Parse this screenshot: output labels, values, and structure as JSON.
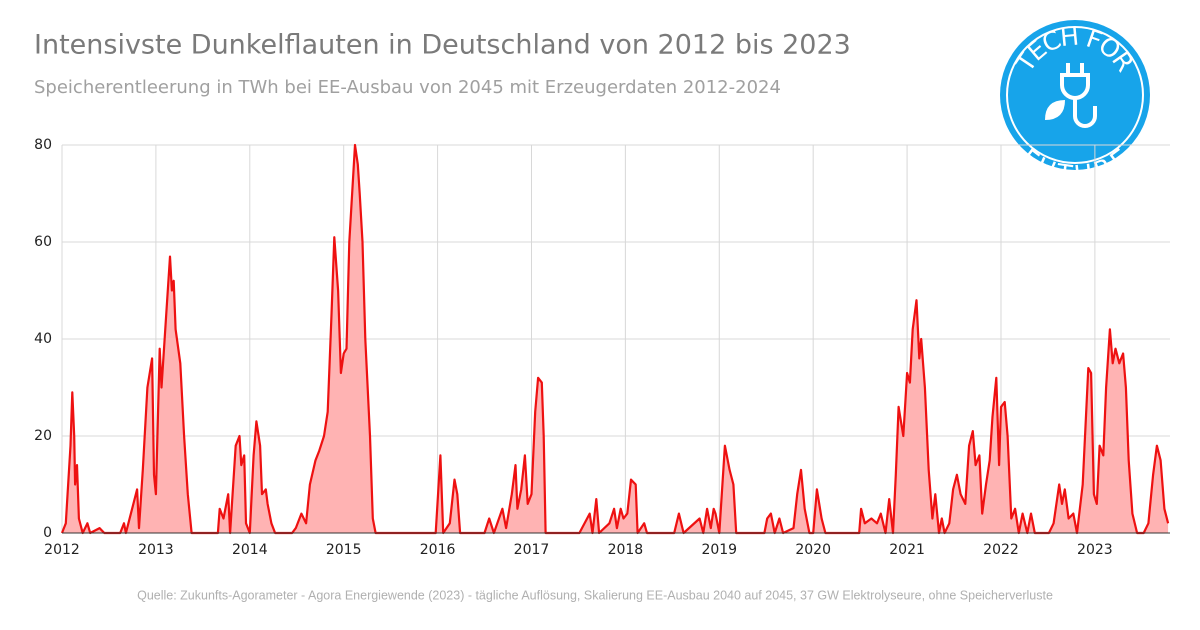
{
  "chart_data": {
    "type": "area",
    "title": "Intensivste Dunkelflauten in Deutschland von 2012 bis 2023",
    "subtitle": "Speicherentleerung in TWh bei EE-Ausbau von 2045 mit Erzeugerdaten 2012-2024",
    "source": "Quelle: Zukunfts-Agorameter - Agora Energiewende (2023) - tägliche  Auflösung, Skalierung EE-Ausbau 2040 auf 2045, 37 GW Elektrolyseure, ohne Speicherverluste",
    "logo": {
      "top": "TECH FOR",
      "bottom": "FUTURE"
    },
    "color": "#ee1111",
    "fill": "#ffb3b3",
    "grid": true,
    "xlim": [
      2012,
      2023.8
    ],
    "xticks": [
      2012,
      2013,
      2014,
      2015,
      2016,
      2017,
      2018,
      2019,
      2020,
      2021,
      2022,
      2023
    ],
    "ylim": [
      0,
      80
    ],
    "yticks": [
      0,
      20,
      40,
      60,
      80
    ],
    "x": [
      2012.0,
      2012.04,
      2012.09,
      2012.11,
      2012.13,
      2012.14,
      2012.16,
      2012.18,
      2012.22,
      2012.27,
      2012.3,
      2012.4,
      2012.45,
      2012.62,
      2012.66,
      2012.68,
      2012.8,
      2012.82,
      2012.86,
      2012.91,
      2012.96,
      2012.98,
      2013.0,
      2013.04,
      2013.06,
      2013.11,
      2013.15,
      2013.17,
      2013.19,
      2013.21,
      2013.26,
      2013.3,
      2013.34,
      2013.38,
      2013.66,
      2013.68,
      2013.72,
      2013.77,
      2013.79,
      2013.85,
      2013.89,
      2013.91,
      2013.94,
      2013.96,
      2014.0,
      2014.04,
      2014.07,
      2014.11,
      2014.13,
      2014.17,
      2014.19,
      2014.23,
      2014.27,
      2014.45,
      2014.49,
      2014.55,
      2014.6,
      2014.64,
      2014.7,
      2014.74,
      2014.79,
      2014.83,
      2014.87,
      2014.9,
      2014.94,
      2014.97,
      2015.0,
      2015.03,
      2015.06,
      2015.12,
      2015.15,
      2015.17,
      2015.2,
      2015.23,
      2015.28,
      2015.31,
      2015.34,
      2015.98,
      2016.03,
      2016.06,
      2016.13,
      2016.18,
      2016.21,
      2016.24,
      2016.5,
      2016.55,
      2016.6,
      2016.69,
      2016.73,
      2016.79,
      2016.83,
      2016.85,
      2016.89,
      2016.93,
      2016.96,
      2017.0,
      2017.04,
      2017.07,
      2017.11,
      2017.13,
      2017.15,
      2017.51,
      2017.62,
      2017.65,
      2017.69,
      2017.72,
      2017.83,
      2017.88,
      2017.91,
      2017.95,
      2017.98,
      2018.02,
      2018.06,
      2018.11,
      2018.13,
      2018.2,
      2018.23,
      2018.52,
      2018.57,
      2018.62,
      2018.79,
      2018.83,
      2018.87,
      2018.91,
      2018.94,
      2018.96,
      2019.0,
      2019.06,
      2019.11,
      2019.15,
      2019.18,
      2019.48,
      2019.51,
      2019.55,
      2019.59,
      2019.64,
      2019.68,
      2019.79,
      2019.83,
      2019.87,
      2019.91,
      2019.96,
      2020.0,
      2020.04,
      2020.09,
      2020.13,
      2020.49,
      2020.51,
      2020.55,
      2020.62,
      2020.68,
      2020.72,
      2020.77,
      2020.81,
      2020.85,
      2020.88,
      2020.91,
      2020.96,
      2021.0,
      2021.03,
      2021.06,
      2021.1,
      2021.13,
      2021.15,
      2021.19,
      2021.23,
      2021.27,
      2021.3,
      2021.34,
      2021.37,
      2021.4,
      2021.45,
      2021.49,
      2021.53,
      2021.57,
      2021.62,
      2021.66,
      2021.7,
      2021.73,
      2021.77,
      2021.8,
      2021.84,
      2021.88,
      2021.91,
      2021.95,
      2021.98,
      2022.0,
      2022.04,
      2022.07,
      2022.11,
      2022.15,
      2022.19,
      2022.23,
      2022.28,
      2022.32,
      2022.36,
      2022.51,
      2022.56,
      2022.62,
      2022.65,
      2022.68,
      2022.72,
      2022.77,
      2022.81,
      2022.87,
      2022.93,
      2022.96,
      2022.99,
      2023.02,
      2023.05,
      2023.09,
      2023.12,
      2023.16,
      2023.19,
      2023.22,
      2023.26,
      2023.3,
      2023.33,
      2023.36,
      2023.4,
      2023.45,
      2023.52,
      2023.57,
      2023.62,
      2023.66,
      2023.7,
      2023.74,
      2023.78
    ],
    "values": [
      0,
      2,
      18,
      29,
      20,
      10,
      14,
      3,
      0,
      2,
      0,
      1,
      0,
      0,
      2,
      0,
      9,
      1,
      13,
      30,
      36,
      12,
      8,
      38,
      30,
      45,
      57,
      50,
      52,
      42,
      35,
      20,
      8,
      0,
      0,
      5,
      3,
      8,
      0,
      18,
      20,
      14,
      16,
      2,
      0,
      16,
      23,
      18,
      8,
      9,
      6,
      2,
      0,
      0,
      1,
      4,
      2,
      10,
      15,
      17,
      20,
      25,
      45,
      61,
      50,
      33,
      37,
      38,
      60,
      80,
      76,
      70,
      60,
      40,
      20,
      3,
      0,
      0,
      16,
      0,
      2,
      11,
      8,
      0,
      0,
      3,
      0,
      5,
      1,
      8,
      14,
      5,
      9,
      16,
      6,
      8,
      25,
      32,
      31,
      20,
      0,
      0,
      4,
      0,
      7,
      0,
      2,
      5,
      1,
      5,
      3,
      4,
      11,
      10,
      0,
      2,
      0,
      0,
      4,
      0,
      3,
      0,
      5,
      1,
      5,
      4,
      0,
      18,
      13,
      10,
      0,
      0,
      3,
      4,
      0,
      3,
      0,
      1,
      8,
      13,
      5,
      0,
      0,
      9,
      3,
      0,
      0,
      5,
      2,
      3,
      2,
      4,
      0,
      7,
      0,
      12,
      26,
      20,
      33,
      31,
      42,
      48,
      36,
      40,
      30,
      13,
      3,
      8,
      0,
      3,
      0,
      2,
      9,
      12,
      8,
      6,
      18,
      21,
      14,
      16,
      4,
      10,
      15,
      24,
      32,
      14,
      26,
      27,
      20,
      3,
      5,
      0,
      4,
      0,
      4,
      0,
      0,
      2,
      10,
      6,
      9,
      3,
      4,
      0,
      10,
      34,
      33,
      8,
      6,
      18,
      16,
      30,
      42,
      35,
      38,
      35,
      37,
      30,
      15,
      4,
      0,
      0,
      2,
      12,
      18,
      15,
      5,
      2
    ]
  }
}
